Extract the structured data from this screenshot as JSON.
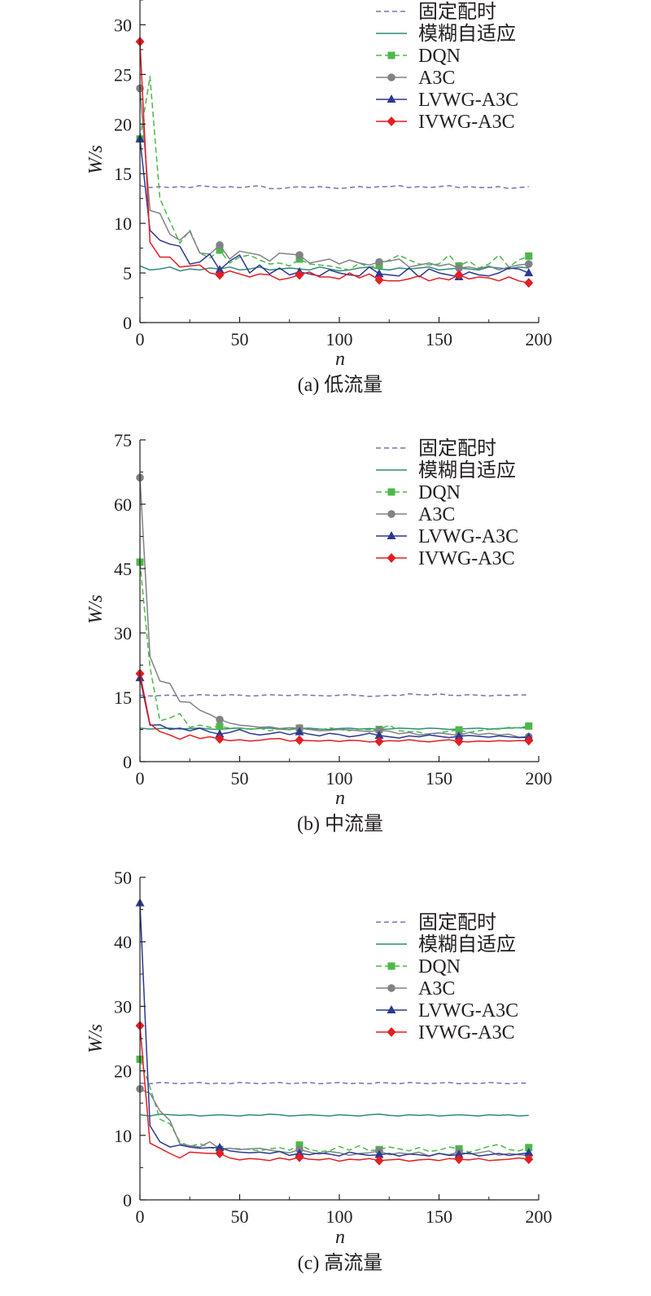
{
  "legend_line_styles": {
    "固定配时": {
      "color": "#7d6fb0",
      "dash": "6,4",
      "marker": "none"
    },
    "模糊自适应": {
      "color": "#2e8b7a",
      "dash": "",
      "marker": "none"
    },
    "DQN": {
      "color": "#4cb848",
      "dash": "7,4",
      "marker": "square"
    },
    "A3C": {
      "color": "#808285",
      "dash": "",
      "marker": "circle"
    },
    "LVWG-A3C": {
      "color": "#2b3990",
      "dash": "",
      "marker": "triangle"
    },
    "IVWG-A3C": {
      "color": "#e31e24",
      "dash": "",
      "marker": "diamond"
    }
  },
  "chart_data": [
    {
      "type": "line",
      "caption": "(a) 低流量",
      "xlabel": "n",
      "ylabel": "W/s",
      "xlim": [
        0,
        200
      ],
      "ylim": [
        0,
        32.5
      ],
      "xticks": [
        0,
        50,
        100,
        150,
        200
      ],
      "yticks": [
        0,
        5,
        10,
        15,
        20,
        25,
        30
      ],
      "legend_position": "top-right",
      "x": [
        0,
        5,
        10,
        15,
        20,
        25,
        30,
        35,
        40,
        45,
        50,
        55,
        60,
        65,
        70,
        75,
        80,
        85,
        90,
        95,
        100,
        105,
        110,
        115,
        120,
        125,
        130,
        135,
        140,
        145,
        150,
        155,
        160,
        165,
        170,
        175,
        180,
        185,
        190,
        195
      ],
      "series": [
        {
          "name": "固定配时",
          "values": [
            13.8,
            13.6,
            13.7,
            13.6,
            13.7,
            13.6,
            13.8,
            13.7,
            13.6,
            13.7,
            13.6,
            13.7,
            13.8,
            13.5,
            13.5,
            13.6,
            13.7,
            13.6,
            13.7,
            13.6,
            13.5,
            13.6,
            13.7,
            13.6,
            13.7,
            13.7,
            13.8,
            13.6,
            13.7,
            13.6,
            13.7,
            13.8,
            13.6,
            13.7,
            13.6,
            13.6,
            13.7,
            13.5,
            13.6,
            13.7
          ]
        },
        {
          "name": "模糊自适应",
          "values": [
            5.7,
            5.3,
            5.4,
            5.6,
            5.2,
            5.4,
            5.3,
            5.5,
            5.4,
            5.6,
            5.3,
            5.4,
            5.6,
            5.3,
            5.4,
            5.5,
            5.4,
            5.3,
            5.6,
            5.4,
            5.2,
            5.3,
            5.5,
            5.6,
            5.4,
            5.3,
            5.5,
            5.4,
            5.5,
            5.6,
            5.3,
            5.4,
            5.5,
            5.4,
            5.3,
            5.6,
            5.5,
            5.4,
            5.6,
            5.5
          ]
        },
        {
          "name": "DQN",
          "marker_x": [
            0,
            40,
            80,
            120,
            160,
            195
          ],
          "values": [
            18.5,
            24.8,
            12.5,
            10.2,
            8.0,
            9.3,
            7.0,
            6.5,
            7.3,
            6.0,
            6.6,
            6.8,
            6.3,
            5.9,
            6.0,
            5.7,
            6.4,
            5.9,
            5.8,
            5.7,
            5.5,
            5.3,
            6.0,
            5.6,
            5.8,
            6.3,
            6.8,
            6.3,
            5.9,
            5.8,
            5.9,
            6.8,
            5.7,
            6.2,
            5.5,
            5.9,
            6.8,
            5.6,
            6.3,
            6.7
          ]
        },
        {
          "name": "A3C",
          "marker_x": [
            0,
            40,
            80,
            120,
            160,
            195
          ],
          "values": [
            23.6,
            11.3,
            11.0,
            8.9,
            8.3,
            9.2,
            7.0,
            6.9,
            7.8,
            6.4,
            7.2,
            7.0,
            6.8,
            6.2,
            7.0,
            6.9,
            6.8,
            6.0,
            6.2,
            6.4,
            5.9,
            6.3,
            6.0,
            5.8,
            6.1,
            6.2,
            6.4,
            5.6,
            5.8,
            6.0,
            5.7,
            5.9,
            5.5,
            5.6,
            5.4,
            5.7,
            5.3,
            5.6,
            5.8,
            5.9
          ]
        },
        {
          "name": "LVWG-A3C",
          "marker_x": [
            0,
            40,
            80,
            120,
            160,
            195
          ],
          "values": [
            18.5,
            9.3,
            8.3,
            7.9,
            7.7,
            5.9,
            6.1,
            6.9,
            5.3,
            6.2,
            6.8,
            5.0,
            5.8,
            4.9,
            5.5,
            4.8,
            5.1,
            4.9,
            4.7,
            5.3,
            5.0,
            4.8,
            4.7,
            5.6,
            4.9,
            4.8,
            4.7,
            5.5,
            4.6,
            5.4,
            5.0,
            4.8,
            4.6,
            5.1,
            4.8,
            4.7,
            5.0,
            5.5,
            5.4,
            5.0
          ]
        },
        {
          "name": "IVWG-A3C",
          "marker_x": [
            0,
            40,
            80,
            120,
            160,
            195
          ],
          "values": [
            28.3,
            8.1,
            6.6,
            6.6,
            5.6,
            5.7,
            5.8,
            5.0,
            4.8,
            5.2,
            4.9,
            4.6,
            4.9,
            4.8,
            4.3,
            4.5,
            4.8,
            5.1,
            4.6,
            4.6,
            4.4,
            5.0,
            4.5,
            4.9,
            4.3,
            4.2,
            4.2,
            4.4,
            4.7,
            4.2,
            4.5,
            4.3,
            4.8,
            4.4,
            4.6,
            4.5,
            4.2,
            4.6,
            4.2,
            4.0
          ]
        }
      ]
    },
    {
      "type": "line",
      "caption": "(b) 中流量",
      "xlabel": "n",
      "ylabel": "W/s",
      "xlim": [
        0,
        200
      ],
      "ylim": [
        0,
        75
      ],
      "xticks": [
        0,
        50,
        100,
        150,
        200
      ],
      "yticks": [
        0,
        15,
        30,
        45,
        60,
        75
      ],
      "legend_position": "top-right",
      "x": [
        0,
        5,
        10,
        15,
        20,
        25,
        30,
        35,
        40,
        45,
        50,
        55,
        60,
        65,
        70,
        75,
        80,
        85,
        90,
        95,
        100,
        105,
        110,
        115,
        120,
        125,
        130,
        135,
        140,
        145,
        150,
        155,
        160,
        165,
        170,
        175,
        180,
        185,
        190,
        195
      ],
      "series": [
        {
          "name": "固定配时",
          "values": [
            15.5,
            15.3,
            15.4,
            15.5,
            15.3,
            15.4,
            15.6,
            15.5,
            15.4,
            15.6,
            15.5,
            15.3,
            15.4,
            15.6,
            15.5,
            15.4,
            15.6,
            15.5,
            15.4,
            15.3,
            15.5,
            15.6,
            15.4,
            15.2,
            15.3,
            15.5,
            15.4,
            15.8,
            15.6,
            15.5,
            15.8,
            15.5,
            15.4,
            15.6,
            15.5,
            15.3,
            15.5,
            15.4,
            15.6,
            15.5
          ]
        },
        {
          "name": "模糊自适应",
          "values": [
            7.8,
            7.6,
            7.7,
            7.8,
            7.6,
            7.7,
            7.8,
            7.6,
            7.5,
            7.7,
            7.8,
            7.6,
            7.7,
            7.8,
            7.6,
            7.5,
            7.7,
            7.8,
            7.6,
            7.5,
            7.7,
            7.8,
            7.6,
            7.7,
            7.5,
            7.6,
            7.8,
            7.7,
            7.6,
            7.8,
            7.7,
            7.5,
            7.6,
            7.7,
            7.8,
            7.6,
            7.7,
            7.8,
            7.9,
            7.8
          ]
        },
        {
          "name": "DQN",
          "marker_x": [
            0,
            40,
            80,
            120,
            160,
            195
          ],
          "values": [
            46.5,
            22.0,
            9.5,
            10.2,
            11.2,
            8.0,
            8.5,
            8.0,
            8.2,
            7.8,
            7.9,
            7.5,
            7.8,
            7.2,
            7.6,
            7.4,
            7.8,
            7.5,
            7.3,
            7.9,
            7.5,
            7.2,
            7.6,
            7.4,
            7.5,
            8.5,
            7.2,
            7.0,
            6.9,
            6.2,
            6.7,
            7.1,
            7.4,
            6.8,
            7.2,
            7.5,
            7.6,
            8.0,
            7.9,
            8.3
          ]
        },
        {
          "name": "A3C",
          "marker_x": [
            0,
            40,
            80,
            120,
            160,
            195
          ],
          "values": [
            66.2,
            24.5,
            18.8,
            18.2,
            14.0,
            13.8,
            12.0,
            11.0,
            9.8,
            9.0,
            8.5,
            8.3,
            8.0,
            8.1,
            7.7,
            7.9,
            7.8,
            7.5,
            7.2,
            7.3,
            7.5,
            7.4,
            7.2,
            7.0,
            7.3,
            7.1,
            6.5,
            6.8,
            6.2,
            6.5,
            6.7,
            6.4,
            6.1,
            6.8,
            6.3,
            6.6,
            6.2,
            6.4,
            5.7,
            5.8
          ]
        },
        {
          "name": "LVWG-A3C",
          "marker_x": [
            0,
            40,
            80,
            120,
            160,
            195
          ],
          "values": [
            19.5,
            8.5,
            8.6,
            7.5,
            7.8,
            7.2,
            7.8,
            6.9,
            6.4,
            6.8,
            7.5,
            6.6,
            6.2,
            6.5,
            6.9,
            6.3,
            6.9,
            6.4,
            6.0,
            6.6,
            6.3,
            5.8,
            6.1,
            6.6,
            6.1,
            5.8,
            5.5,
            6.0,
            5.8,
            6.2,
            5.9,
            5.6,
            5.9,
            6.1,
            5.9,
            5.7,
            6.0,
            5.8,
            5.6,
            5.7
          ]
        },
        {
          "name": "IVWG-A3C",
          "marker_x": [
            0,
            40,
            80,
            120,
            160,
            195
          ],
          "values": [
            20.5,
            8.8,
            7.0,
            6.2,
            5.2,
            6.2,
            5.4,
            5.8,
            5.3,
            4.9,
            5.1,
            4.8,
            5.0,
            5.3,
            5.4,
            4.8,
            5.0,
            4.9,
            4.8,
            5.0,
            4.7,
            5.0,
            4.9,
            4.6,
            4.7,
            4.9,
            4.8,
            5.1,
            4.8,
            4.6,
            4.9,
            5.1,
            4.7,
            4.6,
            4.8,
            4.7,
            4.9,
            4.8,
            4.9,
            4.9
          ]
        }
      ]
    },
    {
      "type": "line",
      "caption": "(c) 高流量",
      "xlabel": "n",
      "ylabel": "W/s",
      "xlim": [
        0,
        200
      ],
      "ylim": [
        0,
        50
      ],
      "xticks": [
        0,
        50,
        100,
        150,
        200
      ],
      "yticks": [
        0,
        10,
        20,
        30,
        40,
        50
      ],
      "legend_position": "top-right",
      "x": [
        0,
        5,
        10,
        15,
        20,
        25,
        30,
        35,
        40,
        45,
        50,
        55,
        60,
        65,
        70,
        75,
        80,
        85,
        90,
        95,
        100,
        105,
        110,
        115,
        120,
        125,
        130,
        135,
        140,
        145,
        150,
        155,
        160,
        165,
        170,
        175,
        180,
        185,
        190,
        195
      ],
      "series": [
        {
          "name": "固定配时",
          "values": [
            18.1,
            18.0,
            18.2,
            18.1,
            18.0,
            18.1,
            18.2,
            18.0,
            18.1,
            18.0,
            18.2,
            18.1,
            18.0,
            18.1,
            18.2,
            18.0,
            18.1,
            18.2,
            18.0,
            18.1,
            18.2,
            18.0,
            18.1,
            18.0,
            18.2,
            18.1,
            18.0,
            18.2,
            18.1,
            18.0,
            18.1,
            18.2,
            18.0,
            18.1,
            18.0,
            18.2,
            18.1,
            18.0,
            18.1,
            18.1
          ]
        },
        {
          "name": "模糊自适应",
          "values": [
            13.2,
            13.0,
            13.3,
            13.2,
            13.1,
            13.2,
            13.0,
            13.1,
            13.2,
            13.1,
            13.0,
            13.2,
            13.1,
            13.3,
            13.2,
            13.0,
            13.1,
            13.2,
            13.1,
            13.0,
            13.2,
            13.1,
            13.0,
            13.2,
            13.3,
            13.1,
            13.0,
            13.2,
            13.1,
            13.2,
            13.0,
            13.1,
            13.2,
            13.1,
            13.0,
            13.2,
            13.1,
            13.2,
            13.0,
            13.1
          ]
        },
        {
          "name": "DQN",
          "marker_x": [
            0,
            40,
            80,
            120,
            160,
            195
          ],
          "values": [
            21.8,
            17.5,
            12.5,
            11.8,
            9.0,
            8.3,
            8.7,
            8.1,
            7.8,
            8.0,
            7.9,
            7.8,
            7.6,
            7.9,
            8.1,
            7.7,
            8.5,
            7.8,
            7.5,
            7.6,
            8.3,
            7.7,
            8.4,
            7.6,
            7.8,
            8.2,
            7.9,
            7.6,
            8.1,
            7.5,
            7.7,
            8.2,
            7.9,
            7.4,
            7.8,
            8.3,
            8.6,
            7.8,
            7.6,
            8.1
          ]
        },
        {
          "name": "A3C",
          "marker_x": [
            0,
            40,
            80,
            120,
            160,
            195
          ],
          "values": [
            17.2,
            16.5,
            13.8,
            12.3,
            8.7,
            8.4,
            8.2,
            9.0,
            7.9,
            8.0,
            7.8,
            7.9,
            8.0,
            7.7,
            7.5,
            7.3,
            7.8,
            7.4,
            7.1,
            7.5,
            7.3,
            6.9,
            7.2,
            7.3,
            7.6,
            7.0,
            7.3,
            7.1,
            7.4,
            6.8,
            7.2,
            7.0,
            7.4,
            7.1,
            7.3,
            7.6,
            6.9,
            7.2,
            7.0,
            6.9
          ]
        },
        {
          "name": "LVWG-A3C",
          "marker_x": [
            0,
            40,
            80,
            120,
            160,
            195
          ],
          "values": [
            46.0,
            11.5,
            9.0,
            8.2,
            8.5,
            8.2,
            8.0,
            8.1,
            8.1,
            7.6,
            7.4,
            7.3,
            7.4,
            7.2,
            7.5,
            6.9,
            7.2,
            7.0,
            7.3,
            7.1,
            6.8,
            7.4,
            7.1,
            6.9,
            7.0,
            7.2,
            6.8,
            7.1,
            7.0,
            6.8,
            7.2,
            6.9,
            7.0,
            7.3,
            6.8,
            7.0,
            7.2,
            6.9,
            7.1,
            7.3
          ]
        },
        {
          "name": "IVWG-A3C",
          "marker_x": [
            0,
            40,
            80,
            120,
            160,
            195
          ],
          "values": [
            27.0,
            8.8,
            8.0,
            7.2,
            6.5,
            7.4,
            7.3,
            7.2,
            7.2,
            6.5,
            6.2,
            6.4,
            6.3,
            6.1,
            6.5,
            6.2,
            6.6,
            6.3,
            6.2,
            6.4,
            6.0,
            6.3,
            6.2,
            6.4,
            6.1,
            6.2,
            6.3,
            6.0,
            6.2,
            6.3,
            6.1,
            6.4,
            6.3,
            6.2,
            6.4,
            6.1,
            6.2,
            6.3,
            6.5,
            6.3
          ]
        }
      ]
    }
  ]
}
